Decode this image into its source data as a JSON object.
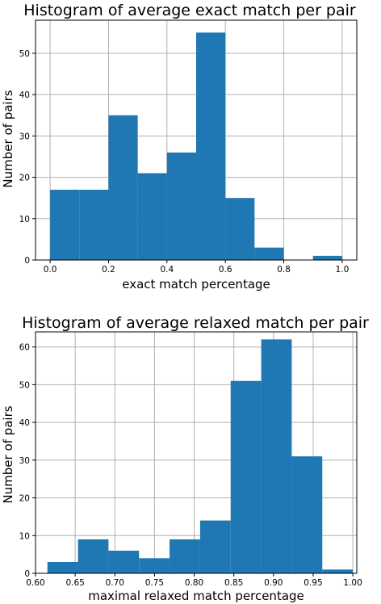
{
  "chart_data": [
    {
      "type": "bar",
      "title": "Histogram of average exact match per pair",
      "xlabel": "exact match percentage",
      "ylabel": "Number of pairs",
      "xlim": [
        -0.05,
        1.05
      ],
      "ylim": [
        0,
        58
      ],
      "xticks": [
        0.0,
        0.2,
        0.4,
        0.6,
        0.8,
        1.0
      ],
      "xtick_labels": [
        "0.0",
        "0.2",
        "0.4",
        "0.6",
        "0.8",
        "1.0"
      ],
      "yticks": [
        0,
        10,
        20,
        30,
        40,
        50
      ],
      "grid": true,
      "bins": [
        {
          "x0": 0.0,
          "x1": 0.1,
          "value": 17
        },
        {
          "x0": 0.1,
          "x1": 0.2,
          "value": 17
        },
        {
          "x0": 0.2,
          "x1": 0.3,
          "value": 35
        },
        {
          "x0": 0.3,
          "x1": 0.4,
          "value": 21
        },
        {
          "x0": 0.4,
          "x1": 0.5,
          "value": 26
        },
        {
          "x0": 0.5,
          "x1": 0.6,
          "value": 55
        },
        {
          "x0": 0.6,
          "x1": 0.7,
          "value": 15
        },
        {
          "x0": 0.7,
          "x1": 0.8,
          "value": 3
        },
        {
          "x0": 0.8,
          "x1": 0.9,
          "value": 0
        },
        {
          "x0": 0.9,
          "x1": 1.0,
          "value": 1
        }
      ],
      "color": "#1f77b4"
    },
    {
      "type": "bar",
      "title": "Histogram of average relaxed match per pair",
      "xlabel": "maximal relaxed match percentage",
      "ylabel": "Number of pairs",
      "xlim": [
        0.6,
        1.005
      ],
      "ylim": [
        0,
        64
      ],
      "xticks": [
        0.6,
        0.65,
        0.7,
        0.75,
        0.8,
        0.85,
        0.9,
        0.95,
        1.0
      ],
      "xtick_labels": [
        "0.60",
        "0.65",
        "0.70",
        "0.75",
        "0.80",
        "0.85",
        "0.90",
        "0.95",
        "1.00"
      ],
      "yticks": [
        0,
        10,
        20,
        30,
        40,
        50,
        60
      ],
      "grid": true,
      "bins": [
        {
          "x0": 0.615,
          "x1": 0.6535,
          "value": 3
        },
        {
          "x0": 0.6535,
          "x1": 0.692,
          "value": 9
        },
        {
          "x0": 0.692,
          "x1": 0.7305,
          "value": 6
        },
        {
          "x0": 0.7305,
          "x1": 0.769,
          "value": 4
        },
        {
          "x0": 0.769,
          "x1": 0.8075,
          "value": 9
        },
        {
          "x0": 0.8075,
          "x1": 0.846,
          "value": 14
        },
        {
          "x0": 0.846,
          "x1": 0.8845,
          "value": 51
        },
        {
          "x0": 0.8845,
          "x1": 0.923,
          "value": 62
        },
        {
          "x0": 0.923,
          "x1": 0.9615,
          "value": 31
        },
        {
          "x0": 0.9615,
          "x1": 1.0,
          "value": 1
        }
      ],
      "color": "#1f77b4"
    }
  ]
}
